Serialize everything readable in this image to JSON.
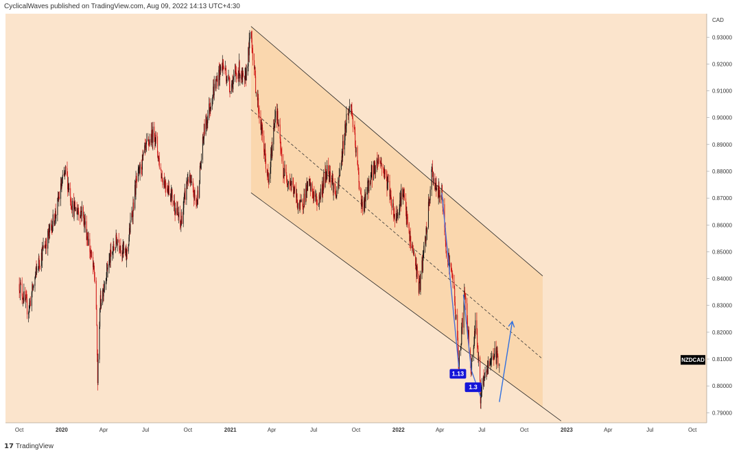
{
  "header": {
    "publisher_line": "CyclicalWaves published on TradingView.com, Aug 09, 2022 14:13 UTC+4:30"
  },
  "footer": {
    "brand": "TradingView"
  },
  "colors": {
    "background": "#fbe4cc",
    "channel_fill": "#fad7ae",
    "candle_up": "#111111",
    "candle_down": "#d01414",
    "wave_line": "#4a6fd8",
    "projection_arrow": "#2f6fe0",
    "badge": "#1515d8",
    "symbol_tag": "#000000"
  },
  "chart_data": {
    "type": "candlestick",
    "symbol": "NZDCAD",
    "currency": "CAD",
    "y_axis": {
      "min": 0.78625,
      "max": 0.93875,
      "ticks": [
        "0.93000",
        "0.92000",
        "0.91000",
        "0.90000",
        "0.89000",
        "0.88000",
        "0.87000",
        "0.86000",
        "0.85000",
        "0.84000",
        "0.83000",
        "0.82000",
        "0.81000",
        "0.80000",
        "0.79000"
      ]
    },
    "x_axis": {
      "ticks": [
        "Oct",
        "2020",
        "Apr",
        "Jul",
        "Oct",
        "2021",
        "Apr",
        "Jul",
        "Oct",
        "2022",
        "Apr",
        "Jul",
        "Oct",
        "2023",
        "Apr",
        "Jul",
        "Oct"
      ],
      "tick_dates": [
        "2019-10-01",
        "2020-01-01",
        "2020-04-01",
        "2020-07-01",
        "2020-10-01",
        "2021-01-01",
        "2021-04-01",
        "2021-07-01",
        "2021-10-01",
        "2022-01-01",
        "2022-04-01",
        "2022-07-01",
        "2022-10-01",
        "2023-01-01",
        "2023-04-01",
        "2023-07-01",
        "2023-10-01"
      ]
    },
    "price_path": [
      [
        "2019-10-01",
        0.838
      ],
      [
        "2019-10-20",
        0.828
      ],
      [
        "2019-11-10",
        0.845
      ],
      [
        "2019-12-01",
        0.855
      ],
      [
        "2019-12-20",
        0.865
      ],
      [
        "2020-01-01",
        0.875
      ],
      [
        "2020-01-10",
        0.88
      ],
      [
        "2020-01-25",
        0.866
      ],
      [
        "2020-02-15",
        0.865
      ],
      [
        "2020-03-01",
        0.852
      ],
      [
        "2020-03-15",
        0.838
      ],
      [
        "2020-03-19",
        0.802
      ],
      [
        "2020-03-24",
        0.83
      ],
      [
        "2020-04-10",
        0.845
      ],
      [
        "2020-05-01",
        0.855
      ],
      [
        "2020-05-20",
        0.848
      ],
      [
        "2020-06-10",
        0.875
      ],
      [
        "2020-07-01",
        0.888
      ],
      [
        "2020-07-20",
        0.895
      ],
      [
        "2020-08-05",
        0.878
      ],
      [
        "2020-08-25",
        0.872
      ],
      [
        "2020-09-15",
        0.86
      ],
      [
        "2020-10-01",
        0.878
      ],
      [
        "2020-10-20",
        0.868
      ],
      [
        "2020-11-05",
        0.895
      ],
      [
        "2020-11-25",
        0.91
      ],
      [
        "2020-12-15",
        0.92
      ],
      [
        "2021-01-01",
        0.912
      ],
      [
        "2021-01-20",
        0.918
      ],
      [
        "2021-02-01",
        0.912
      ],
      [
        "2021-02-15",
        0.932
      ],
      [
        "2021-02-25",
        0.912
      ],
      [
        "2021-03-10",
        0.895
      ],
      [
        "2021-03-25",
        0.875
      ],
      [
        "2021-04-10",
        0.905
      ],
      [
        "2021-04-25",
        0.88
      ],
      [
        "2021-05-15",
        0.875
      ],
      [
        "2021-06-01",
        0.866
      ],
      [
        "2021-06-20",
        0.875
      ],
      [
        "2021-07-10",
        0.868
      ],
      [
        "2021-08-01",
        0.882
      ],
      [
        "2021-08-20",
        0.87
      ],
      [
        "2021-09-10",
        0.9
      ],
      [
        "2021-09-20",
        0.905
      ],
      [
        "2021-10-05",
        0.88
      ],
      [
        "2021-10-15",
        0.865
      ],
      [
        "2021-11-01",
        0.878
      ],
      [
        "2021-11-20",
        0.885
      ],
      [
        "2021-12-10",
        0.875
      ],
      [
        "2021-12-25",
        0.862
      ],
      [
        "2022-01-10",
        0.873
      ],
      [
        "2022-01-25",
        0.855
      ],
      [
        "2022-02-05",
        0.848
      ],
      [
        "2022-02-15",
        0.836
      ],
      [
        "2022-03-01",
        0.855
      ],
      [
        "2022-03-15",
        0.88
      ],
      [
        "2022-03-25",
        0.872
      ],
      [
        "2022-04-05",
        0.872
      ],
      [
        "2022-04-15",
        0.851
      ],
      [
        "2022-05-01",
        0.838
      ],
      [
        "2022-05-12",
        0.808
      ],
      [
        "2022-05-25",
        0.835
      ],
      [
        "2022-06-08",
        0.806
      ],
      [
        "2022-06-18",
        0.826
      ],
      [
        "2022-06-28",
        0.796
      ],
      [
        "2022-07-10",
        0.805
      ],
      [
        "2022-07-25",
        0.812
      ],
      [
        "2022-08-08",
        0.81
      ]
    ],
    "channel": {
      "upper_line": [
        [
          "2021-02-15",
          0.934
        ],
        [
          "2022-11-10",
          0.841
        ]
      ],
      "lower_line": [
        [
          "2021-02-15",
          0.872
        ],
        [
          "2022-11-10",
          0.792
        ]
      ],
      "midline": [
        [
          "2021-02-15",
          0.903
        ],
        [
          "2022-11-10",
          0.81
        ]
      ],
      "fill_end_date": "2022-11-10"
    },
    "wave_lines": [
      [
        [
          "2022-04-05",
          0.872
        ],
        [
          "2022-05-12",
          0.807
        ]
      ],
      [
        [
          "2022-05-22",
          0.834
        ],
        [
          "2022-06-08",
          0.806
        ]
      ],
      [
        [
          "2022-06-08",
          0.806
        ],
        [
          "2022-06-28",
          0.796
        ]
      ]
    ],
    "projection": [
      [
        "2022-08-08",
        0.794
      ],
      [
        "2022-09-05",
        0.824
      ]
    ],
    "fib_badges": [
      {
        "label": "1.13",
        "date": "2022-05-10",
        "price": 0.8045
      },
      {
        "label": "1.3",
        "date": "2022-06-12",
        "price": 0.7995
      }
    ],
    "last_price_tag": {
      "label": "NZDCAD",
      "price": 0.8097
    }
  }
}
